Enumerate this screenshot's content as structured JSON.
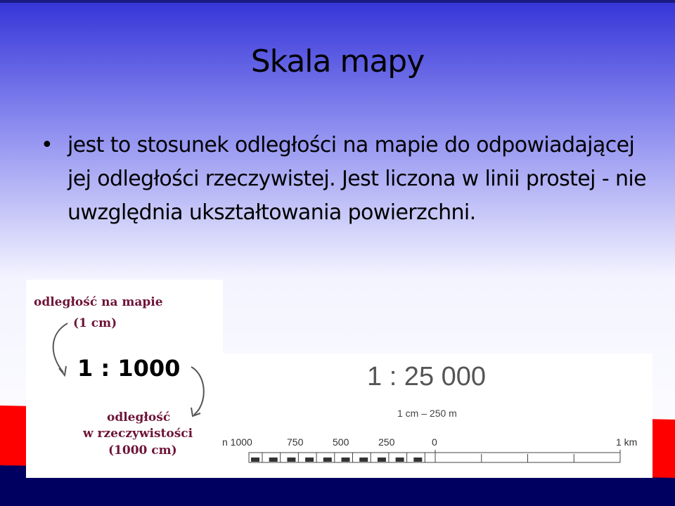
{
  "slide": {
    "title": "Skala mapy",
    "bullet": "jest to stosunek odległości na mapie do odpowiadającej jej odległości rzeczywistej. Jest liczona w linii prostej - nie uwzględnia ukształtowania powierzchni.",
    "bullet_marker": "•"
  },
  "diagram": {
    "map_distance_label": "odległość na mapie",
    "map_distance_value": "(1 cm)",
    "ratio": "1 : 1000",
    "real_distance_label_1": "odległość",
    "real_distance_label_2": "w rzeczywistości",
    "real_distance_value": "(1000 cm)"
  },
  "scale_image": {
    "ratio": "1 : 25 000",
    "equivalence": "1 cm – 250 m",
    "ticks": [
      "n 1000",
      "750",
      "500",
      "250",
      "0",
      "1 km"
    ]
  },
  "colors": {
    "top_blue": "#3a3ad8",
    "red": "#ff0000",
    "navy": "#000060",
    "maroon": "#6e1438"
  }
}
